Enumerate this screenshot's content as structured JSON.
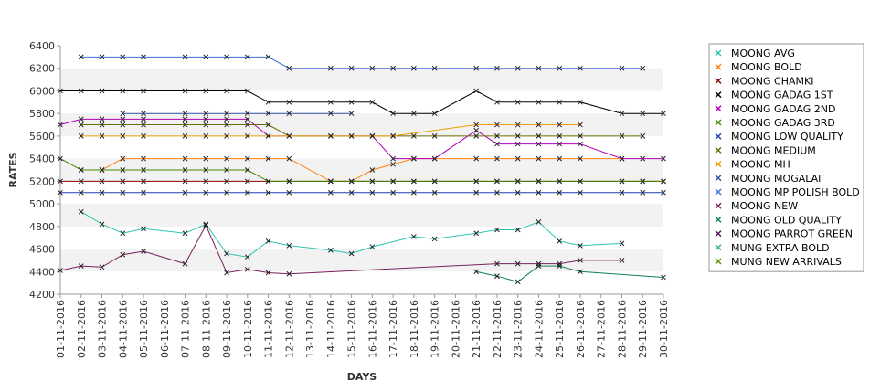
{
  "chart_data": {
    "type": "line",
    "title": "",
    "xlabel": "DAYS",
    "ylabel": "RATES",
    "ylim": [
      4200,
      6400
    ],
    "yticks": [
      4200,
      4400,
      4600,
      4800,
      5000,
      5200,
      5400,
      5600,
      5800,
      6000,
      6200,
      6400
    ],
    "grid": "alternating horizontal bands",
    "legend_position": "right",
    "categories": [
      "01-11-2016",
      "02-11-2016",
      "03-11-2016",
      "04-11-2016",
      "05-11-2016",
      "06-11-2016",
      "07-11-2016",
      "08-11-2016",
      "09-11-2016",
      "10-11-2016",
      "11-11-2016",
      "12-11-2016",
      "13-11-2016",
      "14-11-2016",
      "15-11-2016",
      "16-11-2016",
      "17-11-2016",
      "18-11-2016",
      "19-11-2016",
      "20-11-2016",
      "21-11-2016",
      "22-11-2016",
      "23-11-2016",
      "24-11-2016",
      "25-11-2016",
      "26-11-2016",
      "27-11-2016",
      "28-11-2016",
      "29-11-2016",
      "30-11-2016"
    ],
    "series": [
      {
        "name": "MOONG AVG",
        "color": "#2ec4b0",
        "values": [
          null,
          4930,
          4820,
          4740,
          4780,
          null,
          4740,
          4820,
          4560,
          4530,
          4670,
          4630,
          null,
          4590,
          4560,
          4620,
          null,
          4710,
          4690,
          null,
          4740,
          4770,
          4770,
          4840,
          4670,
          4630,
          null,
          4650,
          null,
          null
        ]
      },
      {
        "name": "MOONG BOLD",
        "color": "#ff7f0e",
        "values": [
          null,
          5300,
          5300,
          5400,
          5400,
          null,
          5400,
          5400,
          5400,
          5400,
          5400,
          5400,
          null,
          5200,
          5200,
          5300,
          5350,
          5400,
          5400,
          null,
          5400,
          5400,
          5400,
          5400,
          5400,
          5400,
          null,
          5400,
          null,
          null
        ]
      },
      {
        "name": "MOONG CHAMKI",
        "color": "#8b0000",
        "values": [
          5200,
          5200,
          5200,
          5200,
          5200,
          null,
          5200,
          5200,
          5200,
          5200,
          5200,
          5200,
          null,
          5200,
          5200,
          5200,
          5200,
          5200,
          5200,
          null,
          5200,
          5200,
          5200,
          5200,
          5200,
          5200,
          null,
          5200,
          5200,
          5200
        ]
      },
      {
        "name": "MOONG GADAG 1ST",
        "color": "#000000",
        "values": [
          6000,
          6000,
          6000,
          6000,
          6000,
          null,
          6000,
          6000,
          6000,
          6000,
          5900,
          5900,
          null,
          5900,
          5900,
          5900,
          5800,
          5800,
          5800,
          null,
          6000,
          5900,
          5900,
          5900,
          5900,
          5900,
          null,
          5800,
          5800,
          5800
        ]
      },
      {
        "name": "MOONG GADAG 2ND",
        "color": "#b300b3",
        "values": [
          5700,
          5750,
          5750,
          5750,
          5750,
          null,
          5750,
          5750,
          5750,
          5750,
          5600,
          null,
          null,
          null,
          null,
          5600,
          5400,
          5400,
          5400,
          null,
          5650,
          5530,
          5530,
          5530,
          5530,
          5530,
          null,
          5400,
          5400,
          5400
        ]
      },
      {
        "name": "MOONG GADAG 3RD",
        "color": "#3d8b00",
        "values": [
          5400,
          5300,
          5300,
          5300,
          5300,
          null,
          5300,
          5300,
          5300,
          5300,
          5200,
          5200,
          null,
          5200,
          5200,
          5200,
          5200,
          5200,
          5200,
          null,
          5200,
          5200,
          5200,
          5200,
          5200,
          5200,
          null,
          5200,
          5200,
          5200
        ]
      },
      {
        "name": "MOONG LOW QUALITY",
        "color": "#1f3fb3",
        "values": [
          5100,
          5100,
          5100,
          5100,
          5100,
          null,
          5100,
          5100,
          5100,
          5100,
          5100,
          5100,
          null,
          5100,
          5100,
          5100,
          5100,
          5100,
          5100,
          null,
          5100,
          5100,
          5100,
          5100,
          5100,
          5100,
          null,
          5100,
          5100,
          5100
        ]
      },
      {
        "name": "MOONG MEDIUM",
        "color": "#6b6b00",
        "values": [
          null,
          5700,
          5700,
          5700,
          5700,
          null,
          5700,
          5700,
          5700,
          5700,
          5700,
          5600,
          null,
          5600,
          5600,
          5600,
          5600,
          5600,
          5600,
          null,
          5600,
          5600,
          5600,
          5600,
          5600,
          5600,
          null,
          5600,
          5600,
          null
        ]
      },
      {
        "name": "MOONG MH",
        "color": "#e8a000",
        "values": [
          null,
          5600,
          5600,
          5600,
          5600,
          null,
          5600,
          5600,
          5600,
          5600,
          5600,
          5600,
          null,
          5600,
          5600,
          5600,
          5600,
          null,
          null,
          null,
          5700,
          5700,
          5700,
          5700,
          5700,
          5700,
          null,
          null,
          null,
          null
        ]
      },
      {
        "name": "MOONG MOGALAI",
        "color": "#2f4f9f",
        "values": [
          null,
          null,
          null,
          5800,
          5800,
          null,
          5800,
          5800,
          5800,
          5800,
          5800,
          5800,
          null,
          5800,
          5800,
          null,
          null,
          null,
          null,
          null,
          null,
          null,
          null,
          null,
          null,
          null,
          null,
          null,
          null,
          null
        ]
      },
      {
        "name": "MOONG MP POLISH BOLD",
        "color": "#3a6fd8",
        "values": [
          null,
          6300,
          6300,
          6300,
          6300,
          null,
          6300,
          6300,
          6300,
          6300,
          6300,
          6200,
          null,
          6200,
          6200,
          6200,
          6200,
          6200,
          6200,
          null,
          6200,
          6200,
          6200,
          6200,
          6200,
          6200,
          null,
          6200,
          6200,
          null
        ]
      },
      {
        "name": "MOONG NEW",
        "color": "#7a1f5c",
        "values": [
          4410,
          4450,
          4440,
          4550,
          4580,
          null,
          4470,
          4810,
          4390,
          4420,
          4390,
          4380,
          null,
          null,
          null,
          null,
          null,
          null,
          null,
          null,
          null,
          4470,
          4470,
          4470,
          4470,
          4500,
          null,
          4500,
          null,
          null
        ]
      },
      {
        "name": "MOONG OLD QUALITY",
        "color": "#0f7f5f",
        "values": [
          null,
          null,
          null,
          null,
          null,
          null,
          null,
          null,
          null,
          null,
          null,
          null,
          null,
          null,
          null,
          null,
          null,
          null,
          null,
          null,
          4400,
          4360,
          4310,
          4450,
          4450,
          4400,
          null,
          null,
          null,
          4350
        ]
      },
      {
        "name": "MOONG PARROT GREEN",
        "color": "#5c1060",
        "values": [
          null,
          null,
          null,
          null,
          null,
          null,
          null,
          null,
          null,
          null,
          null,
          null,
          null,
          null,
          null,
          null,
          null,
          null,
          null,
          null,
          null,
          null,
          null,
          null,
          null,
          null,
          null,
          null,
          null,
          null
        ]
      },
      {
        "name": "MUNG EXTRA BOLD",
        "color": "#30b0a0",
        "values": [
          null,
          null,
          null,
          null,
          null,
          null,
          null,
          null,
          null,
          null,
          null,
          null,
          null,
          null,
          null,
          null,
          null,
          null,
          null,
          null,
          null,
          null,
          null,
          null,
          null,
          null,
          null,
          null,
          null,
          null
        ]
      },
      {
        "name": "MUNG NEW ARRIVALS",
        "color": "#5a9000",
        "values": [
          null,
          null,
          null,
          null,
          null,
          null,
          null,
          null,
          null,
          null,
          null,
          null,
          null,
          null,
          null,
          null,
          null,
          null,
          null,
          null,
          null,
          null,
          null,
          null,
          null,
          null,
          null,
          null,
          null,
          null
        ]
      }
    ]
  }
}
